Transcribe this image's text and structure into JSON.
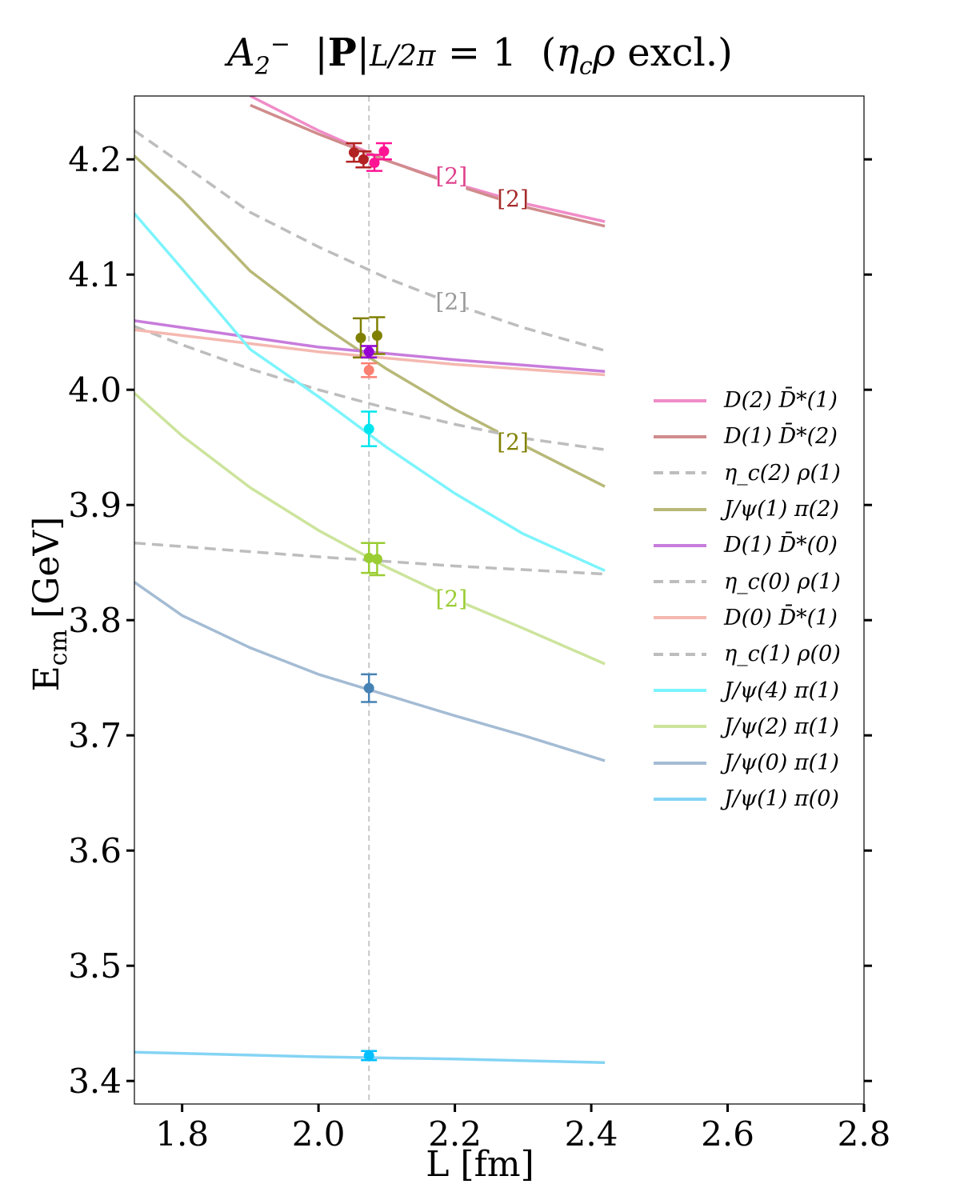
{
  "chart_data": {
    "type": "line",
    "title": "A₂⁻  |P| L/2π = 1  (η_c ρ excl.)",
    "xlabel": "L [fm]",
    "ylabel": "E_cm [GeV]",
    "xlim": [
      1.73,
      2.8
    ],
    "ylim": [
      3.38,
      4.255
    ],
    "x_ticks": [
      1.8,
      2.0,
      2.2,
      2.4,
      2.6,
      2.8
    ],
    "x_tick_labels": [
      "1.8",
      "2.0",
      "2.2",
      "2.4",
      "2.6",
      "2.8"
    ],
    "y_ticks": [
      3.4,
      3.5,
      3.6,
      3.7,
      3.8,
      3.9,
      4.0,
      4.1,
      4.2
    ],
    "y_tick_labels": [
      "3.4",
      "3.5",
      "3.6",
      "3.7",
      "3.8",
      "3.9",
      "4.0",
      "4.1",
      "4.2"
    ],
    "reference_L": 2.074,
    "legend_position": "right",
    "series": [
      {
        "name": "D(2) D̄*(1)",
        "color": "#f08cc8",
        "dash": false,
        "x": [
          1.9,
          2.0,
          2.1,
          2.2,
          2.3,
          2.42
        ],
        "values": [
          4.255,
          4.225,
          4.199,
          4.179,
          4.162,
          4.146
        ],
        "degeneracy": "[2]",
        "degeneracy_at": [
          2.195,
          4.186
        ]
      },
      {
        "name": "D(1) D̄*(2)",
        "color": "#d08c8c",
        "dash": false,
        "x": [
          1.9,
          2.0,
          2.1,
          2.2,
          2.3,
          2.42
        ],
        "values": [
          4.247,
          4.222,
          4.199,
          4.178,
          4.159,
          4.142
        ],
        "degeneracy": "[2]",
        "degeneracy_at": [
          2.285,
          4.166
        ]
      },
      {
        "name": "η_c(2) ρ(1)",
        "color": "#bdbdbd",
        "dash": true,
        "x": [
          1.73,
          1.8,
          1.9,
          2.0,
          2.1,
          2.2,
          2.3,
          2.42
        ],
        "values": [
          4.225,
          4.196,
          4.154,
          4.124,
          4.097,
          4.074,
          4.054,
          4.034
        ],
        "degeneracy": "[2]",
        "degeneracy_at": [
          2.195,
          4.077
        ]
      },
      {
        "name": "J/ψ(1) π(2)",
        "color": "#b8b878",
        "dash": false,
        "x": [
          1.73,
          1.8,
          1.9,
          2.0,
          2.1,
          2.2,
          2.3,
          2.42
        ],
        "values": [
          4.203,
          4.165,
          4.103,
          4.058,
          4.018,
          3.983,
          3.952,
          3.916
        ],
        "degeneracy": "[2]",
        "degeneracy_at": [
          2.285,
          3.955
        ]
      },
      {
        "name": "D(1) D̄*(0)",
        "color": "#c87cdc",
        "dash": false,
        "x": [
          1.73,
          2.0,
          2.2,
          2.42
        ],
        "values": [
          4.06,
          4.037,
          4.026,
          4.016
        ]
      },
      {
        "name": "η_c(0) ρ(1)",
        "color": "#bdbdbd",
        "dash": true,
        "x": [
          1.73,
          1.8,
          1.9,
          2.0,
          2.1,
          2.2,
          2.3,
          2.42
        ],
        "values": [
          4.055,
          4.039,
          4.018,
          4.0,
          3.984,
          3.97,
          3.958,
          3.948
        ]
      },
      {
        "name": "D(0) D̄*(1)",
        "color": "#f4b8b0",
        "dash": false,
        "x": [
          1.73,
          2.0,
          2.2,
          2.42
        ],
        "values": [
          4.052,
          4.033,
          4.022,
          4.013
        ]
      },
      {
        "name": "η_c(1) ρ(0)",
        "color": "#bdbdbd",
        "dash": true,
        "x": [
          1.73,
          2.0,
          2.2,
          2.42
        ],
        "values": [
          3.867,
          3.855,
          3.847,
          3.84
        ]
      },
      {
        "name": "J/ψ(4) π(1)",
        "color": "#7cf4fc",
        "dash": false,
        "x": [
          1.73,
          1.8,
          1.9,
          2.0,
          2.1,
          2.2,
          2.3,
          2.42
        ],
        "values": [
          4.153,
          4.105,
          4.035,
          3.994,
          3.95,
          3.91,
          3.875,
          3.843
        ]
      },
      {
        "name": "J/ψ(2) π(1)",
        "color": "#cce49c",
        "dash": false,
        "x": [
          1.73,
          1.8,
          1.9,
          2.0,
          2.1,
          2.2,
          2.3,
          2.42
        ],
        "values": [
          3.997,
          3.96,
          3.915,
          3.878,
          3.846,
          3.818,
          3.793,
          3.762
        ],
        "degeneracy": "[2]",
        "degeneracy_at": [
          2.195,
          3.819
        ]
      },
      {
        "name": "J/ψ(0) π(1)",
        "color": "#a4bcd4",
        "dash": false,
        "x": [
          1.73,
          1.8,
          1.9,
          2.0,
          2.1,
          2.2,
          2.3,
          2.42
        ],
        "values": [
          3.833,
          3.804,
          3.776,
          3.753,
          3.735,
          3.717,
          3.7,
          3.678
        ]
      },
      {
        "name": "J/ψ(1) π(0)",
        "color": "#84d4f4",
        "dash": false,
        "x": [
          1.73,
          2.0,
          2.2,
          2.42
        ],
        "values": [
          3.425,
          3.421,
          3.419,
          3.416
        ]
      }
    ],
    "points": [
      {
        "L": 2.052,
        "E": 4.206,
        "err": 0.008,
        "color": "#b22222"
      },
      {
        "L": 2.066,
        "E": 4.2,
        "err": 0.007,
        "color": "#b22222"
      },
      {
        "L": 2.082,
        "E": 4.197,
        "err": 0.007,
        "color": "#ff1493"
      },
      {
        "L": 2.096,
        "E": 4.207,
        "err": 0.007,
        "color": "#ff1493"
      },
      {
        "L": 2.062,
        "E": 4.045,
        "err": 0.017,
        "color": "#808000"
      },
      {
        "L": 2.086,
        "E": 4.047,
        "err": 0.016,
        "color": "#808000"
      },
      {
        "L": 2.074,
        "E": 4.033,
        "err": 0.005,
        "color": "#9400d3"
      },
      {
        "L": 2.074,
        "E": 4.017,
        "err": 0.006,
        "color": "#fa8072"
      },
      {
        "L": 2.074,
        "E": 3.966,
        "err": 0.015,
        "color": "#00e5ee"
      },
      {
        "L": 2.074,
        "E": 3.854,
        "err": 0.013,
        "color": "#9acd32"
      },
      {
        "L": 2.086,
        "E": 3.853,
        "err": 0.014,
        "color": "#9acd32"
      },
      {
        "L": 2.074,
        "E": 3.741,
        "err": 0.012,
        "color": "#4682b4"
      },
      {
        "L": 2.074,
        "E": 3.422,
        "err": 0.004,
        "color": "#00bfff"
      }
    ]
  }
}
